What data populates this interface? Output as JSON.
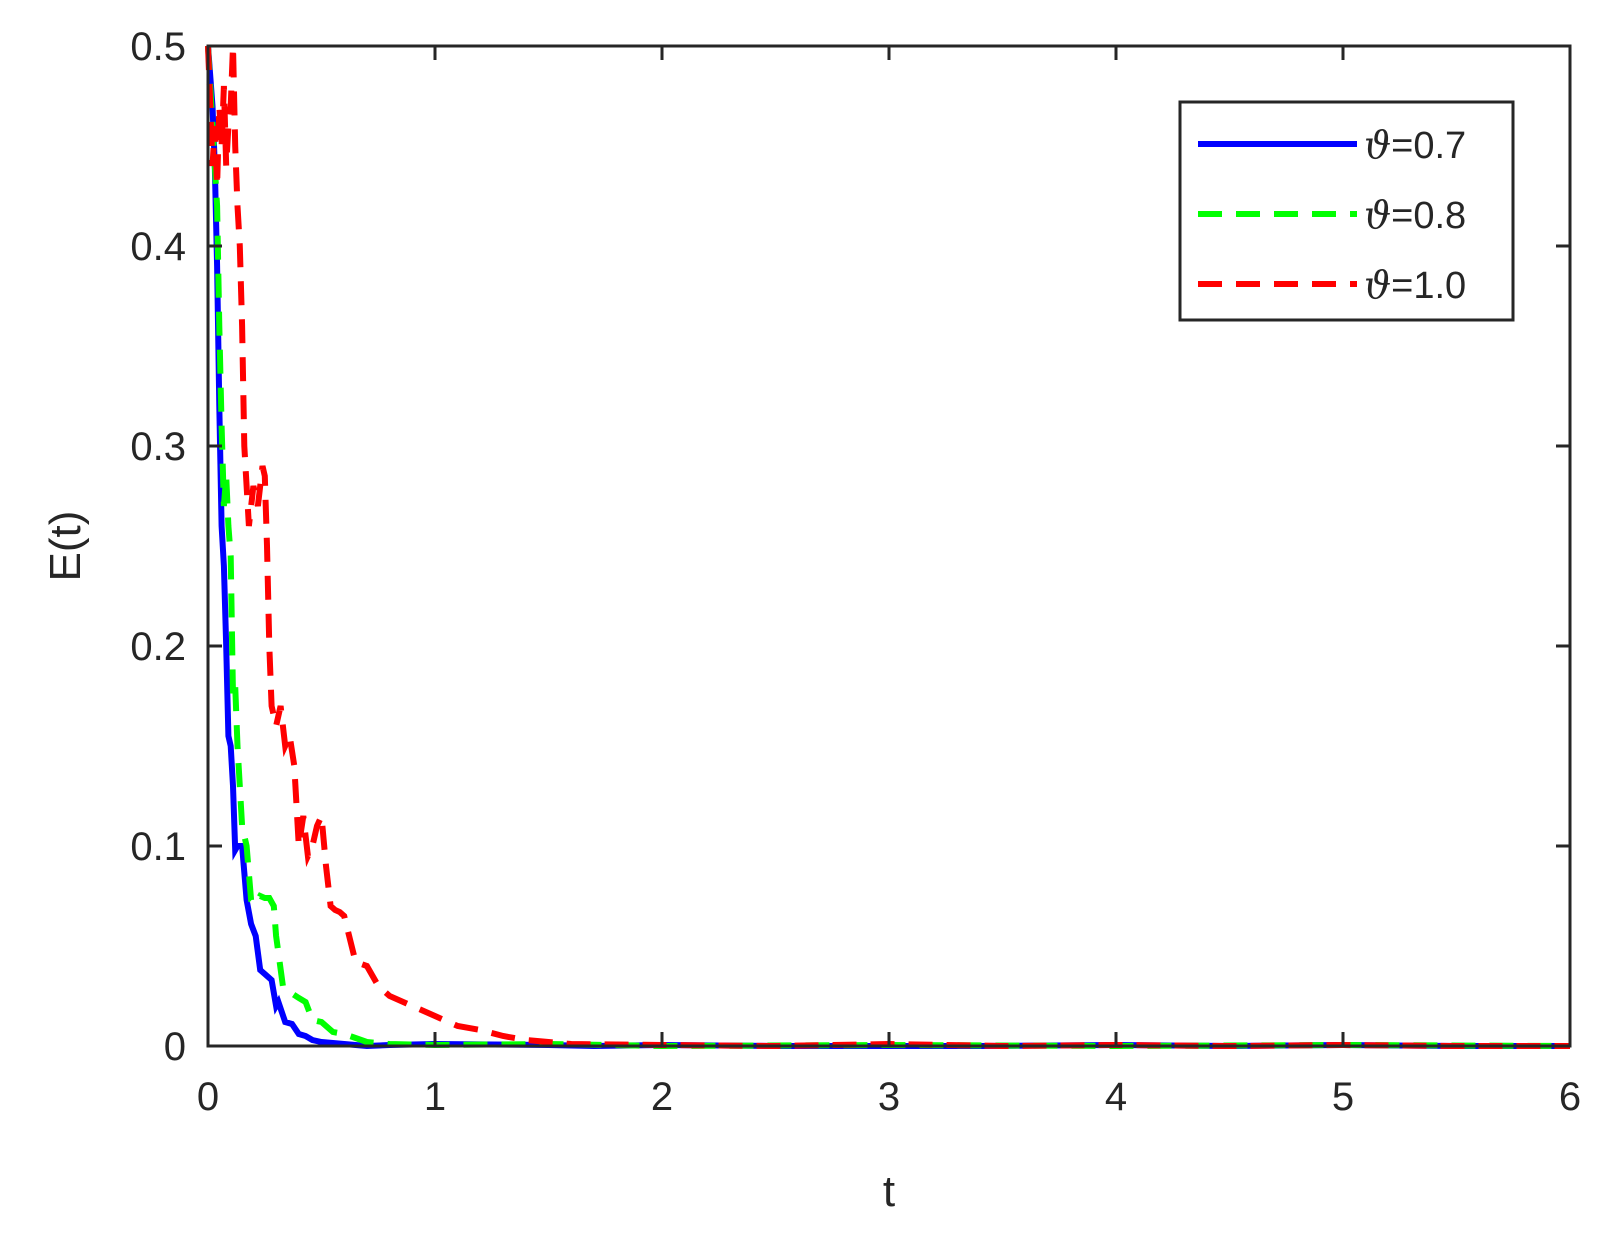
{
  "chart_data": {
    "type": "line",
    "title": "",
    "xlabel": "t",
    "ylabel": "E(t)",
    "xlim": [
      0,
      6
    ],
    "ylim": [
      0,
      0.5
    ],
    "xticks": [
      "0",
      "1",
      "2",
      "3",
      "4",
      "5",
      "6"
    ],
    "yticks": [
      "0",
      "0.1",
      "0.2",
      "0.3",
      "0.4",
      "0.5"
    ],
    "grid": false,
    "legend_position": "top-right",
    "legend_symbol": "ϑ",
    "series": [
      {
        "name": "=0.7",
        "color": "#0000ff",
        "style": "solid",
        "x": [
          0,
          0.02,
          0.03,
          0.04,
          0.05,
          0.06,
          0.07,
          0.08,
          0.09,
          0.1,
          0.11,
          0.12,
          0.13,
          0.15,
          0.17,
          0.19,
          0.21,
          0.23,
          0.25,
          0.28,
          0.3,
          0.31,
          0.34,
          0.37,
          0.4,
          0.43,
          0.46,
          0.5,
          0.55,
          0.6,
          0.7,
          0.8,
          1.0,
          1.5,
          1.7,
          2,
          2.5,
          3,
          3.4,
          4,
          4.5,
          5,
          5.5,
          6
        ],
        "y": [
          0.5,
          0.47,
          0.44,
          0.39,
          0.32,
          0.26,
          0.24,
          0.2,
          0.155,
          0.15,
          0.13,
          0.098,
          0.1,
          0.1,
          0.073,
          0.061,
          0.055,
          0.038,
          0.036,
          0.033,
          0.02,
          0.022,
          0.012,
          0.011,
          0.006,
          0.005,
          0.003,
          0.002,
          0.0015,
          0.001,
          0.0,
          0.0005,
          0.001,
          0.0005,
          0.0,
          0.0005,
          0.0,
          0.0,
          0.0,
          0.0005,
          0.0,
          0.0005,
          0.0,
          0.0
        ]
      },
      {
        "name": "=0.8",
        "color": "#00ff00",
        "style": "dashed",
        "x": [
          0,
          0.02,
          0.04,
          0.05,
          0.06,
          0.07,
          0.08,
          0.09,
          0.1,
          0.11,
          0.12,
          0.13,
          0.14,
          0.15,
          0.17,
          0.19,
          0.21,
          0.23,
          0.25,
          0.27,
          0.29,
          0.3,
          0.33,
          0.36,
          0.4,
          0.43,
          0.46,
          0.5,
          0.55,
          0.6,
          0.65,
          0.7,
          0.8,
          1.0,
          1.5,
          2,
          3,
          4,
          5,
          6
        ],
        "y": [
          0.5,
          0.46,
          0.42,
          0.36,
          0.31,
          0.27,
          0.285,
          0.26,
          0.245,
          0.175,
          0.18,
          0.15,
          0.13,
          0.11,
          0.1,
          0.073,
          0.071,
          0.075,
          0.074,
          0.074,
          0.07,
          0.055,
          0.03,
          0.027,
          0.024,
          0.022,
          0.013,
          0.012,
          0.007,
          0.006,
          0.004,
          0.002,
          0.001,
          0.0005,
          0.001,
          0.0,
          0.0005,
          0.0,
          0.0005,
          0.0
        ]
      },
      {
        "name": "=1.0",
        "color": "#ff0000",
        "style": "dashed",
        "x": [
          0,
          0.01,
          0.02,
          0.03,
          0.04,
          0.05,
          0.06,
          0.07,
          0.08,
          0.09,
          0.1,
          0.11,
          0.12,
          0.13,
          0.14,
          0.15,
          0.16,
          0.17,
          0.18,
          0.2,
          0.22,
          0.24,
          0.25,
          0.26,
          0.27,
          0.28,
          0.3,
          0.32,
          0.34,
          0.36,
          0.38,
          0.4,
          0.42,
          0.44,
          0.46,
          0.48,
          0.5,
          0.52,
          0.54,
          0.56,
          0.58,
          0.6,
          0.65,
          0.7,
          0.75,
          0.8,
          0.9,
          1.0,
          1.1,
          1.2,
          1.3,
          1.4,
          1.5,
          1.6,
          2,
          2.5,
          3,
          3.5,
          4,
          4.5,
          5,
          5.5,
          6
        ],
        "y": [
          0.5,
          0.47,
          0.44,
          0.46,
          0.43,
          0.47,
          0.45,
          0.48,
          0.44,
          0.46,
          0.47,
          0.5,
          0.45,
          0.42,
          0.4,
          0.36,
          0.3,
          0.28,
          0.26,
          0.28,
          0.27,
          0.29,
          0.285,
          0.25,
          0.2,
          0.17,
          0.16,
          0.17,
          0.15,
          0.155,
          0.14,
          0.1,
          0.115,
          0.095,
          0.1,
          0.11,
          0.115,
          0.09,
          0.07,
          0.068,
          0.067,
          0.065,
          0.042,
          0.04,
          0.03,
          0.025,
          0.02,
          0.015,
          0.01,
          0.008,
          0.005,
          0.003,
          0.002,
          0.001,
          0.0005,
          0.0,
          0.001,
          0.0,
          0.0005,
          0.0,
          0.0005,
          0.0,
          0.0
        ]
      }
    ]
  }
}
